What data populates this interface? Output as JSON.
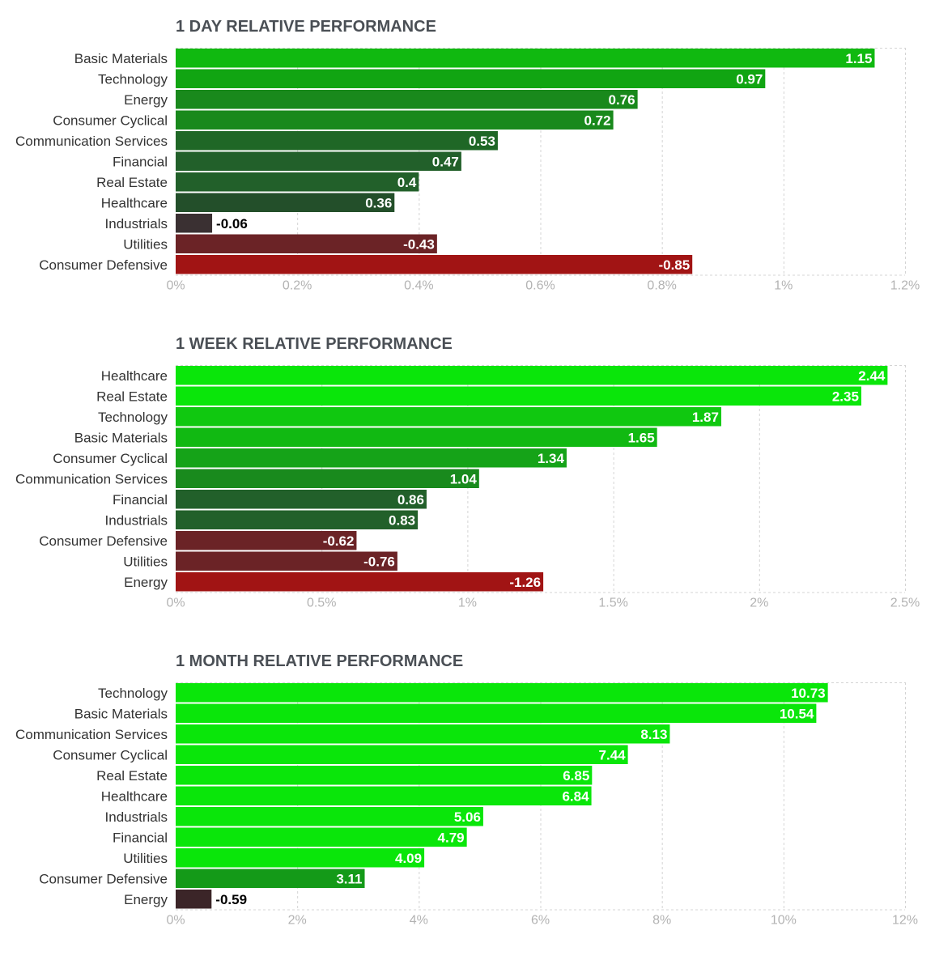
{
  "chart_data": [
    {
      "type": "bar",
      "orientation": "horizontal",
      "title": "1 DAY RELATIVE PERFORMANCE",
      "categories": [
        "Basic Materials",
        "Technology",
        "Energy",
        "Consumer Cyclical",
        "Communication Services",
        "Financial",
        "Real Estate",
        "Healthcare",
        "Industrials",
        "Utilities",
        "Consumer Defensive"
      ],
      "values": [
        1.15,
        0.97,
        0.76,
        0.72,
        0.53,
        0.47,
        0.4,
        0.36,
        -0.06,
        -0.43,
        -0.85
      ],
      "value_labels": [
        "1.15",
        "0.97",
        "0.76",
        "0.72",
        "0.53",
        "0.47",
        "0.4",
        "0.36",
        "-0.06",
        "-0.43",
        "-0.85"
      ],
      "bar_colors": [
        "#10b910",
        "#11a512",
        "#19891c",
        "#19891c",
        "#1f6726",
        "#22602a",
        "#22602a",
        "#234f2a",
        "#3a3032",
        "#6b2326",
        "#a11414"
      ],
      "value_label_colors": [
        "#ffffff",
        "#ffffff",
        "#ffffff",
        "#ffffff",
        "#ffffff",
        "#ffffff",
        "#ffffff",
        "#ffffff",
        "#000000",
        "#ffffff",
        "#ffffff"
      ],
      "xlim": [
        0,
        1.2
      ],
      "xticks": [
        0,
        0.2,
        0.4,
        0.6,
        0.8,
        1,
        1.2
      ],
      "tick_labels": [
        "0%",
        "0.2%",
        "0.4%",
        "0.6%",
        "0.8%",
        "1%",
        "1.2%"
      ],
      "grid": true
    },
    {
      "type": "bar",
      "orientation": "horizontal",
      "title": "1 WEEK RELATIVE PERFORMANCE",
      "categories": [
        "Healthcare",
        "Real Estate",
        "Technology",
        "Basic Materials",
        "Consumer Cyclical",
        "Communication Services",
        "Financial",
        "Industrials",
        "Consumer Defensive",
        "Utilities",
        "Energy"
      ],
      "values": [
        2.44,
        2.35,
        1.87,
        1.65,
        1.34,
        1.04,
        0.86,
        0.83,
        -0.62,
        -0.76,
        -1.26
      ],
      "value_labels": [
        "2.44",
        "2.35",
        "1.87",
        "1.65",
        "1.34",
        "1.04",
        "0.86",
        "0.83",
        "-0.62",
        "-0.76",
        "-1.26"
      ],
      "bar_colors": [
        "#0ae60a",
        "#0ae60a",
        "#10c810",
        "#11b912",
        "#15a318",
        "#198a1d",
        "#22602a",
        "#22602a",
        "#6b2326",
        "#6b2326",
        "#a11414"
      ],
      "value_label_colors": [
        "#ffffff",
        "#ffffff",
        "#ffffff",
        "#ffffff",
        "#ffffff",
        "#ffffff",
        "#ffffff",
        "#ffffff",
        "#ffffff",
        "#ffffff",
        "#ffffff"
      ],
      "xlim": [
        0,
        2.5
      ],
      "xticks": [
        0,
        0.5,
        1,
        1.5,
        2,
        2.5
      ],
      "tick_labels": [
        "0%",
        "0.5%",
        "1%",
        "1.5%",
        "2%",
        "2.5%"
      ],
      "grid": true
    },
    {
      "type": "bar",
      "orientation": "horizontal",
      "title": "1 MONTH RELATIVE PERFORMANCE",
      "categories": [
        "Technology",
        "Basic Materials",
        "Communication Services",
        "Consumer Cyclical",
        "Real Estate",
        "Healthcare",
        "Industrials",
        "Financial",
        "Utilities",
        "Consumer Defensive",
        "Energy"
      ],
      "values": [
        10.73,
        10.54,
        8.13,
        7.44,
        6.85,
        6.84,
        5.06,
        4.79,
        4.09,
        3.11,
        -0.59
      ],
      "value_labels": [
        "10.73",
        "10.54",
        "8.13",
        "7.44",
        "6.85",
        "6.84",
        "5.06",
        "4.79",
        "4.09",
        "3.11",
        "-0.59"
      ],
      "bar_colors": [
        "#0ae60a",
        "#0ae60a",
        "#0ae60a",
        "#0ae60a",
        "#0ae60a",
        "#0ae60a",
        "#0ae60a",
        "#0ae60a",
        "#0ae60a",
        "#149a18",
        "#3b2528"
      ],
      "value_label_colors": [
        "#ffffff",
        "#ffffff",
        "#ffffff",
        "#ffffff",
        "#ffffff",
        "#ffffff",
        "#ffffff",
        "#ffffff",
        "#ffffff",
        "#ffffff",
        "#000000"
      ],
      "xlim": [
        0,
        12
      ],
      "xticks": [
        0,
        2,
        4,
        6,
        8,
        10,
        12
      ],
      "tick_labels": [
        "0%",
        "2%",
        "4%",
        "6%",
        "8%",
        "10%",
        "12%"
      ],
      "grid": true
    }
  ]
}
